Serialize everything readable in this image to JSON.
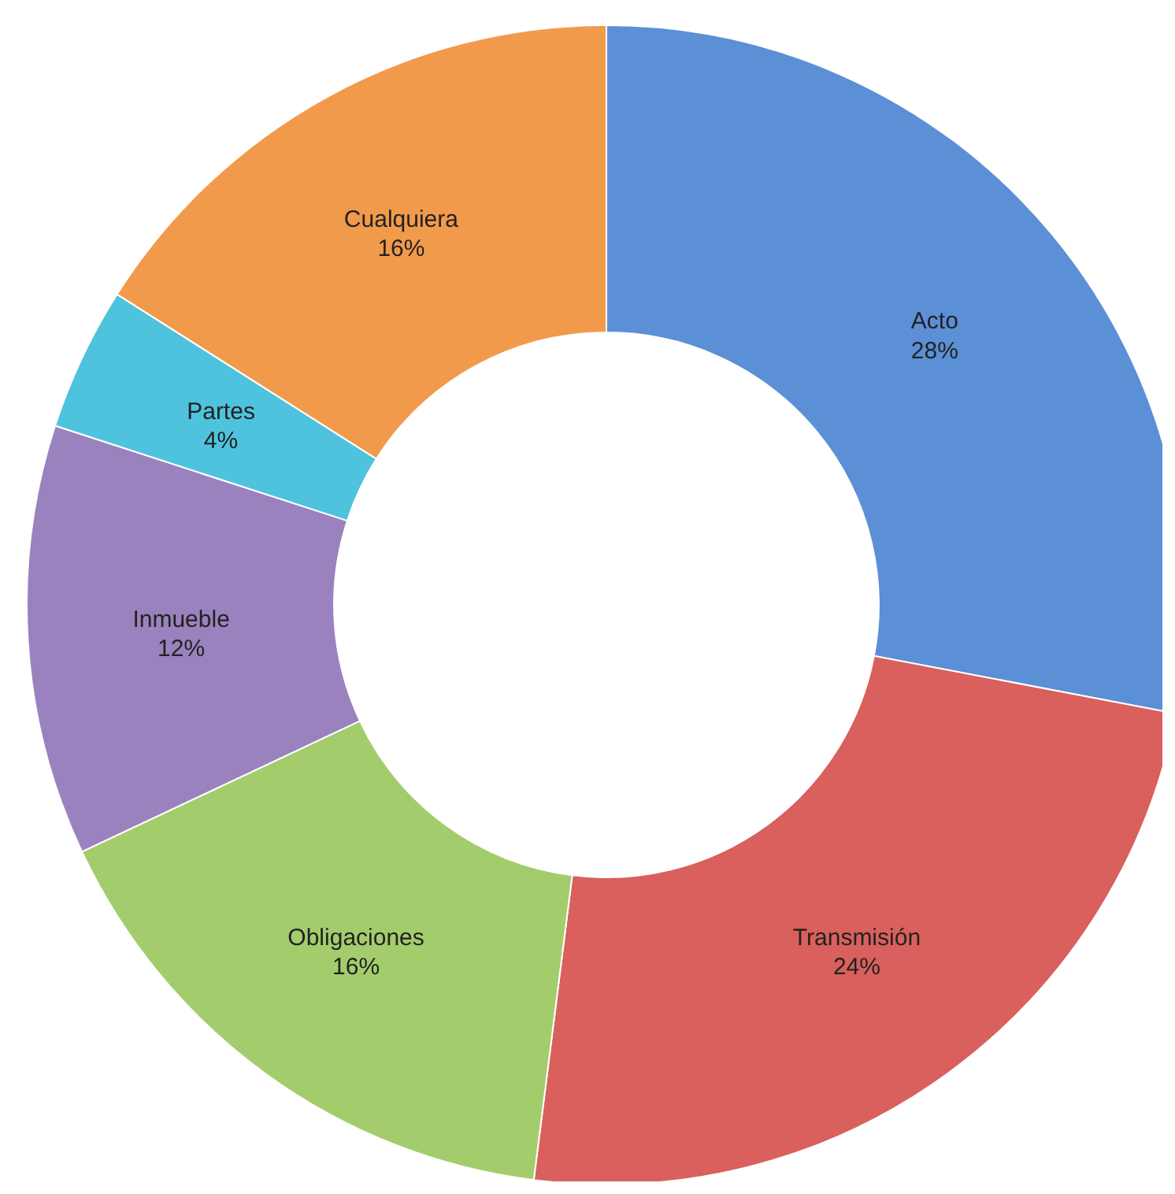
{
  "chart_data": {
    "type": "donut",
    "categories": [
      "Acto",
      "Transmisión",
      "Obligaciones",
      "Inmueble",
      "Partes",
      "Cualquiera"
    ],
    "values": [
      28,
      24,
      16,
      12,
      4,
      16
    ],
    "colors": [
      "#5b8fd6",
      "#d9605c",
      "#a3cd6c",
      "#9a82bf",
      "#4fc3dd",
      "#f29a4c"
    ],
    "value_labels": [
      "28%",
      "24%",
      "16%",
      "12%",
      "4%",
      "16%"
    ]
  }
}
